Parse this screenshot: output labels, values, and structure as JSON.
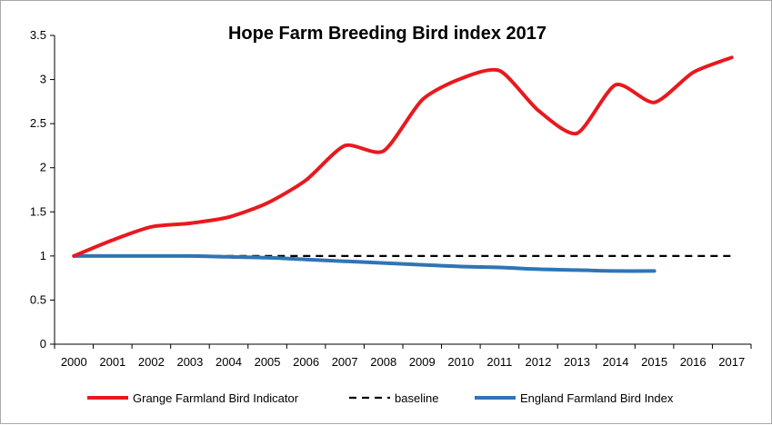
{
  "chart_data": {
    "type": "line",
    "title": "Hope Farm Breeding Bird index 2017",
    "xlabel": "",
    "ylabel": "",
    "x": [
      "2000",
      "2001",
      "2002",
      "2003",
      "2004",
      "2005",
      "2006",
      "2007",
      "2008",
      "2009",
      "2010",
      "2011",
      "2012",
      "2013",
      "2014",
      "2015",
      "2016",
      "2017"
    ],
    "ylim": [
      0,
      3.5
    ],
    "yticks": [
      "0",
      "0.5",
      "1",
      "1.5",
      "2",
      "2.5",
      "3",
      "3.5"
    ],
    "grid": false,
    "legend_position": "bottom",
    "series": [
      {
        "name": "Grange Farmland Bird Indicator",
        "color": "#e8191e",
        "style": "solid",
        "values": [
          1.0,
          1.18,
          1.33,
          1.37,
          1.44,
          1.6,
          1.86,
          2.25,
          2.19,
          2.77,
          3.01,
          3.1,
          2.65,
          2.39,
          2.94,
          2.74,
          3.08,
          3.25
        ]
      },
      {
        "name": "baseline",
        "color": "#000000",
        "style": "dashed",
        "values": [
          1,
          1,
          1,
          1,
          1,
          1,
          1,
          1,
          1,
          1,
          1,
          1,
          1,
          1,
          1,
          1,
          1,
          1
        ]
      },
      {
        "name": "England Farmland Bird Index",
        "color": "#2e75b6",
        "style": "solid",
        "values": [
          1.0,
          1.0,
          1.0,
          1.0,
          0.99,
          0.98,
          0.96,
          0.94,
          0.92,
          0.9,
          0.88,
          0.87,
          0.85,
          0.84,
          0.83,
          0.83,
          null,
          null
        ]
      }
    ]
  }
}
